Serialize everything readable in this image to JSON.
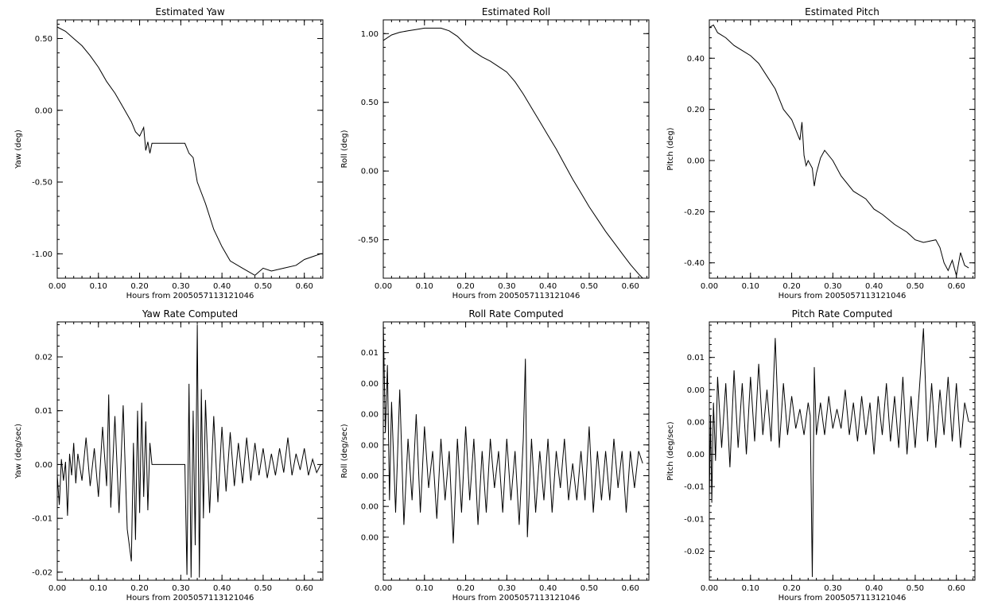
{
  "figure": {
    "background": "#ffffff",
    "line_color": "#000000"
  },
  "chart_data": [
    {
      "id": "yaw",
      "type": "line",
      "title": "Estimated Yaw",
      "xlabel": "Hours from 2005057113121046",
      "ylabel": "Yaw (deg)",
      "xlim": [
        0.0,
        0.645
      ],
      "ylim": [
        -1.17,
        0.63
      ],
      "xticks": [
        0.0,
        0.1,
        0.2,
        0.3,
        0.4,
        0.5,
        0.6
      ],
      "xtick_labels": [
        "0.00",
        "0.10",
        "0.20",
        "0.30",
        "0.40",
        "0.50",
        "0.60"
      ],
      "yticks": [
        0.5,
        0.0,
        -0.5,
        -1.0
      ],
      "ytick_labels": [
        "0.50",
        "0.00",
        "-0.50",
        "-1.00"
      ],
      "series": [
        {
          "x": [
            0.0,
            0.02,
            0.04,
            0.06,
            0.08,
            0.1,
            0.12,
            0.14,
            0.16,
            0.18,
            0.19,
            0.2,
            0.21,
            0.215,
            0.22,
            0.225,
            0.23,
            0.25,
            0.28,
            0.31,
            0.32,
            0.33,
            0.34,
            0.36,
            0.38,
            0.4,
            0.42,
            0.45,
            0.48,
            0.5,
            0.52,
            0.55,
            0.58,
            0.6,
            0.62,
            0.64
          ],
          "y": [
            0.58,
            0.55,
            0.5,
            0.45,
            0.38,
            0.3,
            0.2,
            0.12,
            0.02,
            -0.08,
            -0.15,
            -0.18,
            -0.12,
            -0.28,
            -0.22,
            -0.3,
            -0.23,
            -0.23,
            -0.23,
            -0.23,
            -0.3,
            -0.33,
            -0.5,
            -0.65,
            -0.83,
            -0.95,
            -1.05,
            -1.1,
            -1.15,
            -1.1,
            -1.12,
            -1.1,
            -1.08,
            -1.04,
            -1.02,
            -1.0
          ]
        }
      ]
    },
    {
      "id": "roll",
      "type": "line",
      "title": "Estimated Roll",
      "xlabel": "Hours from 2005057113121046",
      "ylabel": "Roll (deg)",
      "xlim": [
        0.0,
        0.645
      ],
      "ylim": [
        -0.78,
        1.1
      ],
      "xticks": [
        0.0,
        0.1,
        0.2,
        0.3,
        0.4,
        0.5,
        0.6
      ],
      "xtick_labels": [
        "0.00",
        "0.10",
        "0.20",
        "0.30",
        "0.40",
        "0.50",
        "0.60"
      ],
      "yticks": [
        1.0,
        0.5,
        0.0,
        -0.5
      ],
      "ytick_labels": [
        "1.00",
        "0.50",
        "0.00",
        "-0.50"
      ],
      "series": [
        {
          "x": [
            0.0,
            0.02,
            0.04,
            0.06,
            0.08,
            0.1,
            0.12,
            0.14,
            0.16,
            0.18,
            0.2,
            0.22,
            0.24,
            0.26,
            0.28,
            0.3,
            0.32,
            0.34,
            0.36,
            0.38,
            0.4,
            0.42,
            0.44,
            0.46,
            0.48,
            0.5,
            0.52,
            0.54,
            0.56,
            0.58,
            0.6,
            0.62,
            0.63
          ],
          "y": [
            0.95,
            0.99,
            1.01,
            1.02,
            1.03,
            1.04,
            1.04,
            1.04,
            1.02,
            0.98,
            0.92,
            0.87,
            0.83,
            0.8,
            0.76,
            0.72,
            0.65,
            0.56,
            0.46,
            0.36,
            0.26,
            0.16,
            0.05,
            -0.06,
            -0.16,
            -0.26,
            -0.35,
            -0.44,
            -0.52,
            -0.6,
            -0.68,
            -0.75,
            -0.78
          ]
        }
      ]
    },
    {
      "id": "pitch",
      "type": "line",
      "title": "Estimated Pitch",
      "xlabel": "Hours from 2005057113121046",
      "ylabel": "Pitch (deg)",
      "xlim": [
        0.0,
        0.645
      ],
      "ylim": [
        -0.46,
        0.55
      ],
      "xticks": [
        0.0,
        0.1,
        0.2,
        0.3,
        0.4,
        0.5,
        0.6
      ],
      "xtick_labels": [
        "0.00",
        "0.10",
        "0.20",
        "0.30",
        "0.40",
        "0.50",
        "0.60"
      ],
      "yticks": [
        0.4,
        0.2,
        0.0,
        -0.2,
        -0.4
      ],
      "ytick_labels": [
        "0.40",
        "0.20",
        "0.00",
        "-0.20",
        "-0.40"
      ],
      "series": [
        {
          "x": [
            0.0,
            0.01,
            0.02,
            0.04,
            0.06,
            0.08,
            0.1,
            0.12,
            0.14,
            0.16,
            0.18,
            0.2,
            0.22,
            0.225,
            0.23,
            0.235,
            0.24,
            0.25,
            0.255,
            0.26,
            0.27,
            0.28,
            0.3,
            0.32,
            0.35,
            0.38,
            0.4,
            0.42,
            0.45,
            0.48,
            0.5,
            0.52,
            0.55,
            0.56,
            0.57,
            0.58,
            0.59,
            0.6,
            0.61,
            0.62,
            0.63
          ],
          "y": [
            0.52,
            0.53,
            0.5,
            0.48,
            0.45,
            0.43,
            0.41,
            0.38,
            0.33,
            0.28,
            0.2,
            0.16,
            0.08,
            0.15,
            0.02,
            -0.02,
            0.0,
            -0.03,
            -0.1,
            -0.05,
            0.01,
            0.04,
            0.0,
            -0.06,
            -0.12,
            -0.15,
            -0.19,
            -0.21,
            -0.25,
            -0.28,
            -0.31,
            -0.32,
            -0.31,
            -0.34,
            -0.4,
            -0.43,
            -0.39,
            -0.45,
            -0.36,
            -0.41,
            -0.42
          ]
        }
      ]
    },
    {
      "id": "yaw_rate",
      "type": "line",
      "title": "Yaw Rate Computed",
      "xlabel": "Hours from 2005057113121046",
      "ylabel": "Yaw (deg/sec)",
      "xlim": [
        0.0,
        0.645
      ],
      "ylim": [
        -0.0215,
        0.0265
      ],
      "xticks": [
        0.0,
        0.1,
        0.2,
        0.3,
        0.4,
        0.5,
        0.6
      ],
      "xtick_labels": [
        "0.00",
        "0.10",
        "0.20",
        "0.30",
        "0.40",
        "0.50",
        "0.60"
      ],
      "yticks": [
        0.02,
        0.01,
        0.0,
        -0.01,
        -0.02
      ],
      "ytick_labels": [
        "0.02",
        "0.01",
        "0.00",
        "-0.01",
        "-0.02"
      ],
      "series": [
        {
          "x": [
            0.0,
            0.005,
            0.01,
            0.015,
            0.02,
            0.025,
            0.03,
            0.035,
            0.04,
            0.045,
            0.05,
            0.06,
            0.07,
            0.08,
            0.09,
            0.1,
            0.11,
            0.12,
            0.125,
            0.13,
            0.14,
            0.15,
            0.16,
            0.17,
            0.18,
            0.185,
            0.19,
            0.195,
            0.2,
            0.205,
            0.21,
            0.215,
            0.22,
            0.225,
            0.23,
            0.25,
            0.28,
            0.31,
            0.315,
            0.32,
            0.325,
            0.33,
            0.335,
            0.34,
            0.345,
            0.35,
            0.355,
            0.36,
            0.37,
            0.38,
            0.39,
            0.4,
            0.41,
            0.42,
            0.43,
            0.44,
            0.45,
            0.46,
            0.47,
            0.48,
            0.49,
            0.5,
            0.51,
            0.52,
            0.53,
            0.54,
            0.55,
            0.56,
            0.57,
            0.58,
            0.59,
            0.6,
            0.61,
            0.62,
            0.63,
            0.64
          ],
          "y": [
            -0.002,
            -0.0075,
            0.001,
            -0.003,
            0.0005,
            -0.0095,
            0.002,
            -0.002,
            0.004,
            -0.0035,
            0.002,
            -0.003,
            0.005,
            -0.004,
            0.003,
            -0.006,
            0.007,
            -0.004,
            0.013,
            -0.008,
            0.009,
            -0.009,
            0.011,
            -0.012,
            -0.018,
            0.004,
            -0.014,
            0.01,
            -0.009,
            0.0115,
            -0.006,
            0.008,
            -0.0085,
            0.004,
            0.0,
            0.0,
            0.0,
            0.0,
            -0.0205,
            0.015,
            -0.021,
            0.01,
            -0.015,
            0.026,
            -0.021,
            0.014,
            -0.01,
            0.012,
            -0.009,
            0.009,
            -0.007,
            0.007,
            -0.005,
            0.006,
            -0.004,
            0.004,
            -0.0035,
            0.005,
            -0.003,
            0.004,
            -0.002,
            0.003,
            -0.0025,
            0.002,
            -0.002,
            0.003,
            -0.0015,
            0.005,
            -0.002,
            0.002,
            -0.001,
            0.003,
            -0.002,
            0.001,
            -0.0015,
            0.0
          ]
        }
      ]
    },
    {
      "id": "roll_rate",
      "type": "line",
      "title": "Roll Rate Computed",
      "xlabel": "Hours from 2005057113121046",
      "ylabel": "Roll (deg/sec)",
      "xlim": [
        0.0,
        0.645
      ],
      "ylim": [
        -0.0085,
        0.0125
      ],
      "xticks": [
        0.0,
        0.1,
        0.2,
        0.3,
        0.4,
        0.5,
        0.6
      ],
      "xtick_labels": [
        "0.00",
        "0.10",
        "0.20",
        "0.30",
        "0.40",
        "0.50",
        "0.60"
      ],
      "yticks": [
        0.01,
        0.0075,
        0.005,
        0.0025,
        0.0,
        -0.0025,
        -0.005
      ],
      "ytick_labels": [
        "0.01",
        "0.00",
        "0.00",
        "0.00",
        "0.00",
        "0.00",
        "0.00"
      ],
      "series": [
        {
          "x": [
            0.0,
            0.005,
            0.01,
            0.015,
            0.02,
            0.03,
            0.04,
            0.05,
            0.06,
            0.07,
            0.08,
            0.09,
            0.1,
            0.11,
            0.12,
            0.13,
            0.14,
            0.15,
            0.16,
            0.17,
            0.18,
            0.19,
            0.2,
            0.21,
            0.22,
            0.23,
            0.24,
            0.25,
            0.26,
            0.27,
            0.28,
            0.29,
            0.3,
            0.31,
            0.32,
            0.33,
            0.34,
            0.345,
            0.35,
            0.36,
            0.37,
            0.38,
            0.39,
            0.4,
            0.41,
            0.42,
            0.43,
            0.44,
            0.45,
            0.46,
            0.47,
            0.48,
            0.49,
            0.5,
            0.51,
            0.52,
            0.53,
            0.54,
            0.55,
            0.56,
            0.57,
            0.58,
            0.59,
            0.6,
            0.61,
            0.62,
            0.63
          ],
          "y": [
            0.0125,
            0.0035,
            0.009,
            -0.002,
            0.006,
            -0.003,
            0.007,
            -0.004,
            0.003,
            -0.002,
            0.005,
            -0.003,
            0.004,
            -0.001,
            0.002,
            -0.0035,
            0.003,
            -0.002,
            0.002,
            -0.0055,
            0.003,
            -0.003,
            0.004,
            -0.002,
            0.003,
            -0.004,
            0.002,
            -0.003,
            0.003,
            -0.001,
            0.002,
            -0.003,
            0.003,
            -0.002,
            0.002,
            -0.004,
            0.003,
            0.0095,
            -0.005,
            0.003,
            -0.003,
            0.002,
            -0.002,
            0.003,
            -0.003,
            0.002,
            -0.001,
            0.003,
            -0.002,
            0.001,
            -0.002,
            0.002,
            -0.002,
            0.004,
            -0.003,
            0.002,
            -0.002,
            0.002,
            -0.002,
            0.003,
            -0.001,
            0.002,
            -0.003,
            0.002,
            -0.001,
            0.002,
            0.001
          ]
        }
      ]
    },
    {
      "id": "pitch_rate",
      "type": "line",
      "title": "Pitch Rate Computed",
      "xlabel": "Hours from 2005057113121046",
      "ylabel": "Pitch (deg/sec)",
      "xlim": [
        0.0,
        0.645
      ],
      "ylim": [
        -0.0245,
        0.0155
      ],
      "xticks": [
        0.0,
        0.1,
        0.2,
        0.3,
        0.4,
        0.5,
        0.6
      ],
      "xtick_labels": [
        "0.00",
        "0.10",
        "0.20",
        "0.30",
        "0.40",
        "0.50",
        "0.60"
      ],
      "yticks": [
        0.01,
        0.005,
        0.0,
        -0.005,
        -0.01,
        -0.015,
        -0.02
      ],
      "ytick_labels": [
        "0.01",
        "0.00",
        "0.00",
        "0.00",
        "-0.01",
        "-0.01",
        "-0.02"
      ],
      "series": [
        {
          "x": [
            0.0,
            0.003,
            0.006,
            0.01,
            0.015,
            0.02,
            0.03,
            0.04,
            0.05,
            0.06,
            0.07,
            0.08,
            0.09,
            0.1,
            0.11,
            0.12,
            0.13,
            0.14,
            0.15,
            0.16,
            0.17,
            0.18,
            0.19,
            0.2,
            0.21,
            0.22,
            0.23,
            0.24,
            0.245,
            0.25,
            0.255,
            0.26,
            0.27,
            0.28,
            0.29,
            0.3,
            0.31,
            0.32,
            0.33,
            0.34,
            0.35,
            0.36,
            0.37,
            0.38,
            0.39,
            0.4,
            0.41,
            0.42,
            0.43,
            0.44,
            0.45,
            0.46,
            0.47,
            0.48,
            0.49,
            0.5,
            0.51,
            0.52,
            0.53,
            0.54,
            0.55,
            0.56,
            0.57,
            0.58,
            0.59,
            0.6,
            0.61,
            0.62,
            0.63
          ],
          "y": [
            -0.012,
            0.001,
            -0.0125,
            0.003,
            -0.006,
            0.007,
            -0.004,
            0.006,
            -0.007,
            0.008,
            -0.004,
            0.006,
            -0.005,
            0.007,
            -0.003,
            0.009,
            -0.002,
            0.005,
            -0.003,
            0.013,
            -0.004,
            0.006,
            -0.002,
            0.004,
            -0.001,
            0.002,
            -0.002,
            0.003,
            0.001,
            -0.024,
            0.0085,
            -0.002,
            0.003,
            -0.002,
            0.004,
            -0.001,
            0.002,
            -0.001,
            0.005,
            -0.002,
            0.003,
            -0.003,
            0.004,
            -0.002,
            0.003,
            -0.005,
            0.004,
            -0.002,
            0.006,
            -0.003,
            0.004,
            -0.004,
            0.007,
            -0.005,
            0.004,
            -0.004,
            0.005,
            0.0145,
            -0.003,
            0.006,
            -0.004,
            0.005,
            -0.002,
            0.007,
            -0.003,
            0.006,
            -0.004,
            0.003,
            0.0
          ]
        }
      ]
    }
  ]
}
